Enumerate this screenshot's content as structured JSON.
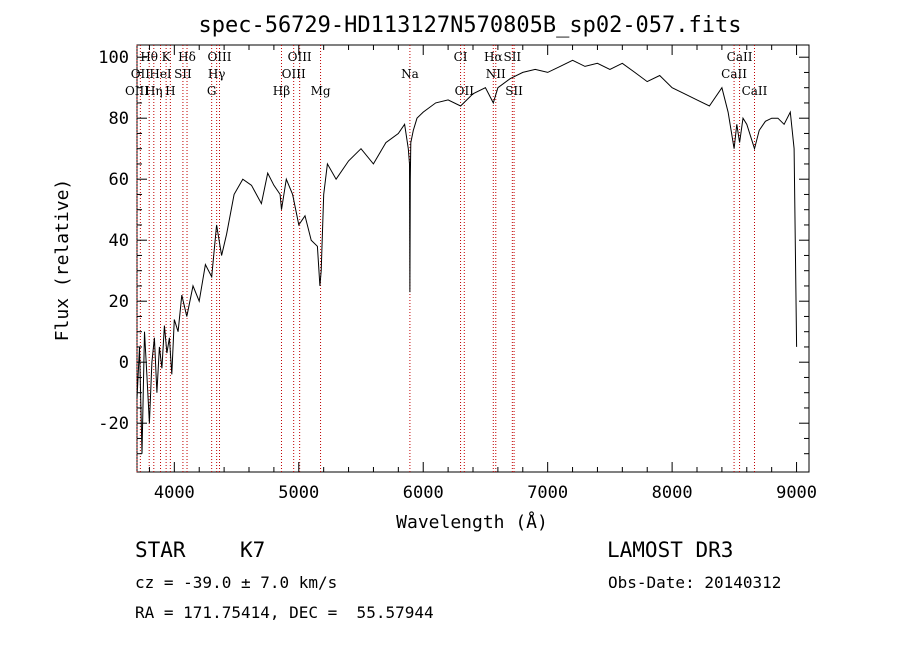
{
  "chart_data": {
    "type": "line",
    "title": "spec-56729-HD113127N570805B_sp02-057.fits",
    "xlabel": "Wavelength (Å)",
    "ylabel": "Flux (relative)",
    "xlim": [
      3700,
      9100
    ],
    "ylim": [
      -36,
      104
    ],
    "xticks": [
      4000,
      5000,
      6000,
      7000,
      8000,
      9000
    ],
    "yticks": [
      -20,
      0,
      20,
      40,
      60,
      80,
      100
    ],
    "series": [
      {
        "name": "flux",
        "x": [
          3700,
          3720,
          3740,
          3760,
          3780,
          3800,
          3820,
          3840,
          3860,
          3880,
          3900,
          3920,
          3940,
          3960,
          3980,
          4000,
          4030,
          4060,
          4100,
          4150,
          4200,
          4250,
          4300,
          4340,
          4380,
          4420,
          4480,
          4550,
          4620,
          4700,
          4750,
          4800,
          4850,
          4861,
          4900,
          4950,
          5000,
          5050,
          5100,
          5150,
          5170,
          5180,
          5200,
          5230,
          5300,
          5400,
          5500,
          5600,
          5700,
          5800,
          5850,
          5880,
          5890,
          5893,
          5896,
          5900,
          5920,
          5950,
          6000,
          6100,
          6200,
          6300,
          6400,
          6500,
          6563,
          6600,
          6700,
          6800,
          6900,
          7000,
          7100,
          7200,
          7300,
          7400,
          7500,
          7600,
          7700,
          7800,
          7900,
          8000,
          8100,
          8200,
          8300,
          8400,
          8450,
          8498,
          8520,
          8542,
          8570,
          8600,
          8662,
          8700,
          8750,
          8800,
          8850,
          8900,
          8950,
          8980,
          9000
        ],
        "y": [
          -12,
          5,
          -30,
          10,
          -5,
          -20,
          0,
          8,
          -10,
          5,
          -2,
          12,
          3,
          8,
          -4,
          14,
          10,
          22,
          15,
          25,
          20,
          32,
          28,
          45,
          35,
          42,
          55,
          60,
          58,
          52,
          62,
          58,
          55,
          50,
          60,
          55,
          45,
          48,
          40,
          38,
          25,
          30,
          55,
          65,
          60,
          66,
          70,
          65,
          72,
          75,
          78,
          70,
          65,
          23,
          60,
          72,
          76,
          80,
          82,
          85,
          86,
          84,
          88,
          90,
          85,
          90,
          93,
          95,
          96,
          95,
          97,
          99,
          97,
          98,
          96,
          98,
          95,
          92,
          94,
          90,
          88,
          86,
          84,
          90,
          82,
          70,
          78,
          72,
          80,
          78,
          70,
          76,
          79,
          80,
          80,
          78,
          82,
          70,
          5
        ]
      }
    ],
    "line_markers": [
      {
        "label": "Hθ",
        "wl": 3798,
        "row": 0
      },
      {
        "label": "K",
        "wl": 3934,
        "row": 0
      },
      {
        "label": "Hδ",
        "wl": 4102,
        "row": 0
      },
      {
        "label": "OIII",
        "wl": 4363,
        "row": 0
      },
      {
        "label": "OIII",
        "wl": 5007,
        "row": 0
      },
      {
        "label": "CI",
        "wl": 6300,
        "row": 0
      },
      {
        "label": "Hα",
        "wl": 6563,
        "row": 0
      },
      {
        "label": "SII",
        "wl": 6716,
        "row": 0
      },
      {
        "label": "CaII",
        "wl": 8542,
        "row": 0
      },
      {
        "label": "OII",
        "wl": 3727,
        "row": 1
      },
      {
        "label": "HeI",
        "wl": 3889,
        "row": 1
      },
      {
        "label": "SII",
        "wl": 4069,
        "row": 1
      },
      {
        "label": "Hγ",
        "wl": 4340,
        "row": 1
      },
      {
        "label": "OIII",
        "wl": 4959,
        "row": 1
      },
      {
        "label": "Na",
        "wl": 5893,
        "row": 1
      },
      {
        "label": "NII",
        "wl": 6583,
        "row": 1
      },
      {
        "label": "CaII",
        "wl": 8498,
        "row": 1
      },
      {
        "label": "OIII",
        "wl": 3700,
        "row": 2
      },
      {
        "label": "Hη",
        "wl": 3835,
        "row": 2
      },
      {
        "label": "H",
        "wl": 3968,
        "row": 2
      },
      {
        "label": "G",
        "wl": 4300,
        "row": 2
      },
      {
        "label": "Hβ",
        "wl": 4861,
        "row": 2
      },
      {
        "label": "Mg",
        "wl": 5175,
        "row": 2
      },
      {
        "label": "OII",
        "wl": 6330,
        "row": 2
      },
      {
        "label": "SII",
        "wl": 6730,
        "row": 2
      },
      {
        "label": "CaII",
        "wl": 8662,
        "row": 2
      }
    ]
  },
  "info": {
    "object_class": "STAR",
    "subclass": "K7",
    "survey": "LAMOST DR3",
    "redshift": "cz = -39.0 ± 7.0 km/s",
    "obs_date": "Obs-Date: 20140312",
    "coords": "RA = 171.75414, DEC =  55.57944"
  }
}
